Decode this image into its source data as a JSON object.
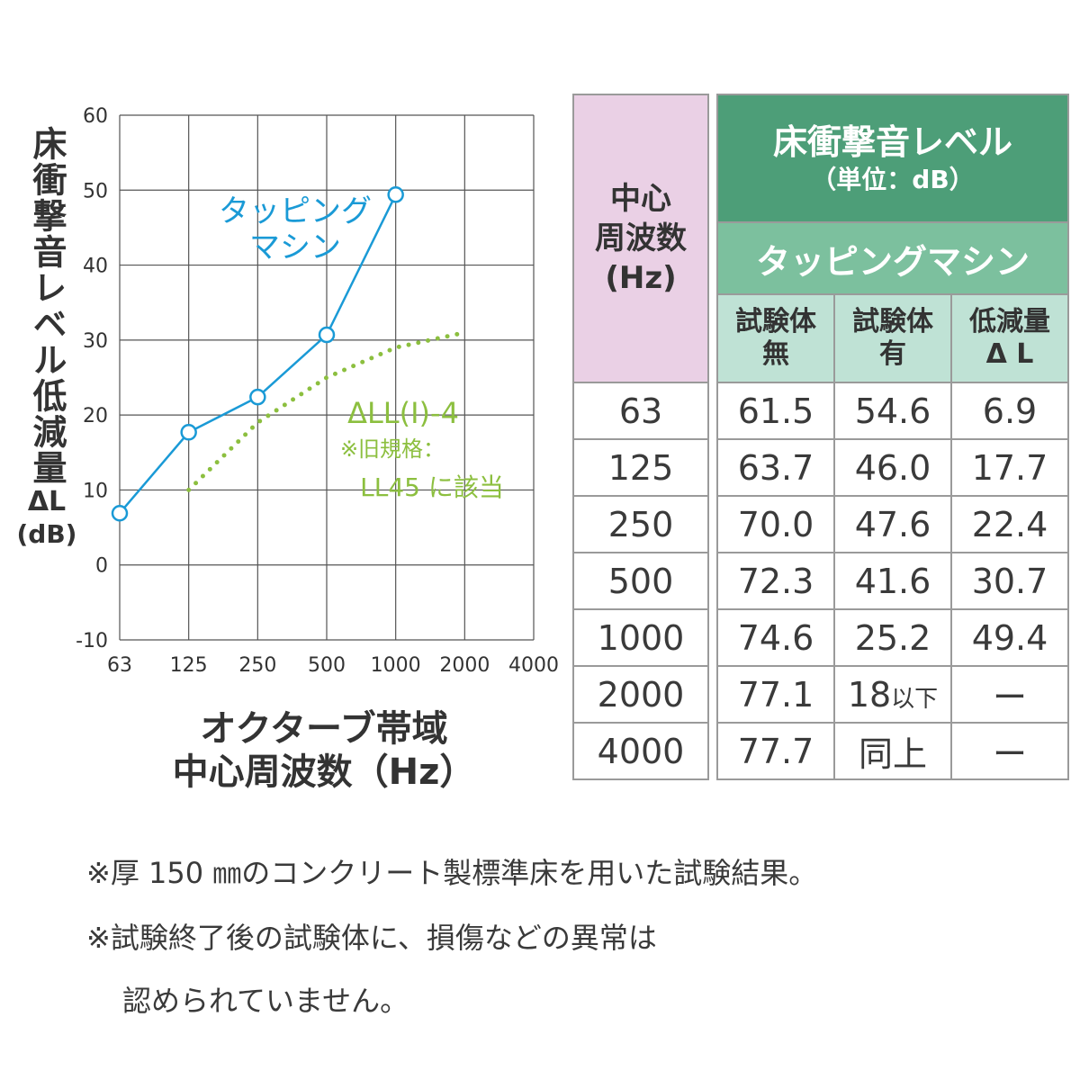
{
  "chart_data": {
    "type": "line",
    "xlabel_lines": [
      "オクターブ帯域",
      "中心周波数（Hz）"
    ],
    "ylabel_vertical": "床衝撃音レベル低減量",
    "ylabel_delta": "ΔL",
    "ylabel_unit": "(dB)",
    "x_ticks": [
      "63",
      "125",
      "250",
      "500",
      "1000",
      "2000",
      "4000"
    ],
    "y_ticks": [
      "60",
      "50",
      "40",
      "30",
      "20",
      "10",
      "0",
      "-10"
    ],
    "ylim": [
      -10,
      60
    ],
    "x_scale": "log2-octave",
    "grid": true,
    "series": [
      {
        "name": "タッピング",
        "name_line2": "マシン",
        "color": "#1a9ad6",
        "style": "solid-with-open-circles",
        "x": [
          "63",
          "125",
          "250",
          "500",
          "1000"
        ],
        "values": [
          6.9,
          17.7,
          22.4,
          30.7,
          49.4
        ]
      },
      {
        "name": "ΔLL(Ⅰ)-4",
        "note_line1": "※旧規格：",
        "note_line2": "LL45 に該当",
        "color": "#8cbf3f",
        "style": "dotted",
        "x": [
          "125",
          "250",
          "500",
          "1000",
          "2000"
        ],
        "values": [
          10,
          19,
          25,
          29,
          31
        ]
      }
    ]
  },
  "table": {
    "freq_header": [
      "中心",
      "周波数",
      "(Hz)"
    ],
    "main_header": "床衝撃音レベル",
    "unit_header": "（単位：dB）",
    "sub_header": "タッピングマシン",
    "col_headers": [
      [
        "試験体",
        "無"
      ],
      [
        "試験体",
        "有"
      ],
      [
        "低減量",
        "Δ L"
      ]
    ],
    "rows": [
      {
        "freq": "63",
        "without": "61.5",
        "with": "54.6",
        "delta": "6.9"
      },
      {
        "freq": "125",
        "without": "63.7",
        "with": "46.0",
        "delta": "17.7"
      },
      {
        "freq": "250",
        "without": "70.0",
        "with": "47.6",
        "delta": "22.4"
      },
      {
        "freq": "500",
        "without": "72.3",
        "with": "41.6",
        "delta": "30.7"
      },
      {
        "freq": "1000",
        "without": "74.6",
        "with": "25.2",
        "delta": "49.4"
      },
      {
        "freq": "2000",
        "without": "77.1",
        "with_main": "18",
        "with_small": "以下",
        "delta": "ー"
      },
      {
        "freq": "4000",
        "without": "77.7",
        "with": "同上",
        "delta": "ー"
      }
    ]
  },
  "notes": [
    "※厚 150 ㎜のコンクリート製標準床を用いた試験結果。",
    "※試験終了後の試験体に、損傷などの異常は",
    "認められていません。"
  ]
}
